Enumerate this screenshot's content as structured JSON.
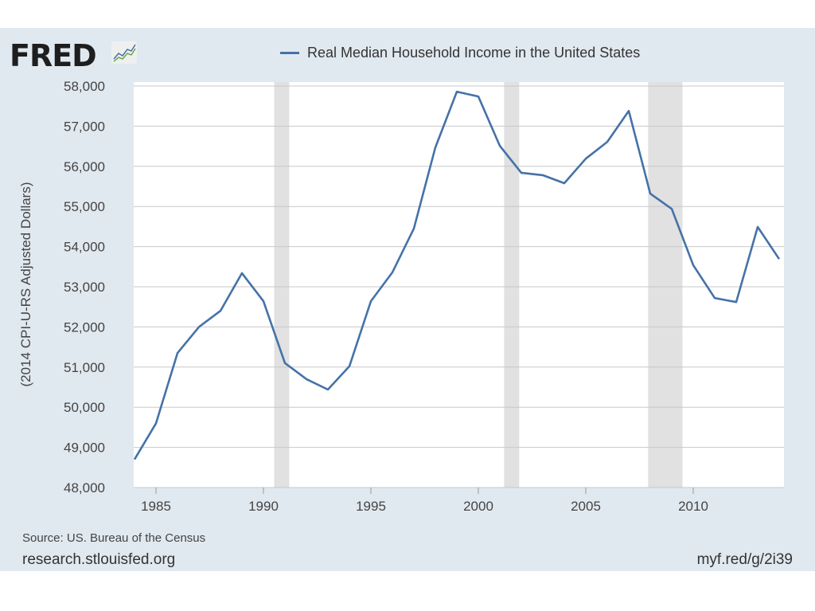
{
  "logo": {
    "text": "FRED"
  },
  "chart_data": {
    "type": "line",
    "title": "Real Median Household Income in the United States",
    "ylabel": "(2014 CPI-U-RS Adjusted Dollars)",
    "xlabel": "",
    "xlim": [
      1984,
      2014
    ],
    "ylim": [
      48000,
      58000
    ],
    "x_ticks": [
      1985,
      1990,
      1995,
      2000,
      2005,
      2010
    ],
    "y_ticks": [
      "48,000",
      "49,000",
      "50,000",
      "51,000",
      "52,000",
      "53,000",
      "54,000",
      "55,000",
      "56,000",
      "57,000",
      "58,000"
    ],
    "y_tick_values": [
      48000,
      49000,
      50000,
      51000,
      52000,
      53000,
      54000,
      55000,
      56000,
      57000,
      58000
    ],
    "grid": "horizontal",
    "legend": "top",
    "recessions": [
      [
        1990.5,
        1991.2
      ],
      [
        2001.2,
        2001.9
      ],
      [
        2007.9,
        2009.5
      ]
    ],
    "series": [
      {
        "name": "Real Median Household Income in the United States",
        "color": "#4572a7",
        "x": [
          1984,
          1985,
          1986,
          1987,
          1988,
          1989,
          1990,
          1991,
          1992,
          1993,
          1994,
          1995,
          1996,
          1997,
          1998,
          1999,
          2000,
          2001,
          2002,
          2003,
          2004,
          2005,
          2006,
          2007,
          2008,
          2009,
          2010,
          2011,
          2012,
          2013,
          2014
        ],
        "values": [
          48700,
          49600,
          51350,
          52000,
          52400,
          53340,
          52640,
          51100,
          50700,
          50440,
          51020,
          52640,
          53360,
          54450,
          56470,
          57860,
          57740,
          56510,
          55840,
          55780,
          55580,
          56190,
          56610,
          57380,
          55320,
          54940,
          53540,
          52720,
          52620,
          54490,
          53690
        ]
      }
    ]
  },
  "footer": {
    "source": "Source: US. Bureau of the Census",
    "site": "research.stlouisfed.org",
    "short_url": "myf.red/g/2i39"
  }
}
